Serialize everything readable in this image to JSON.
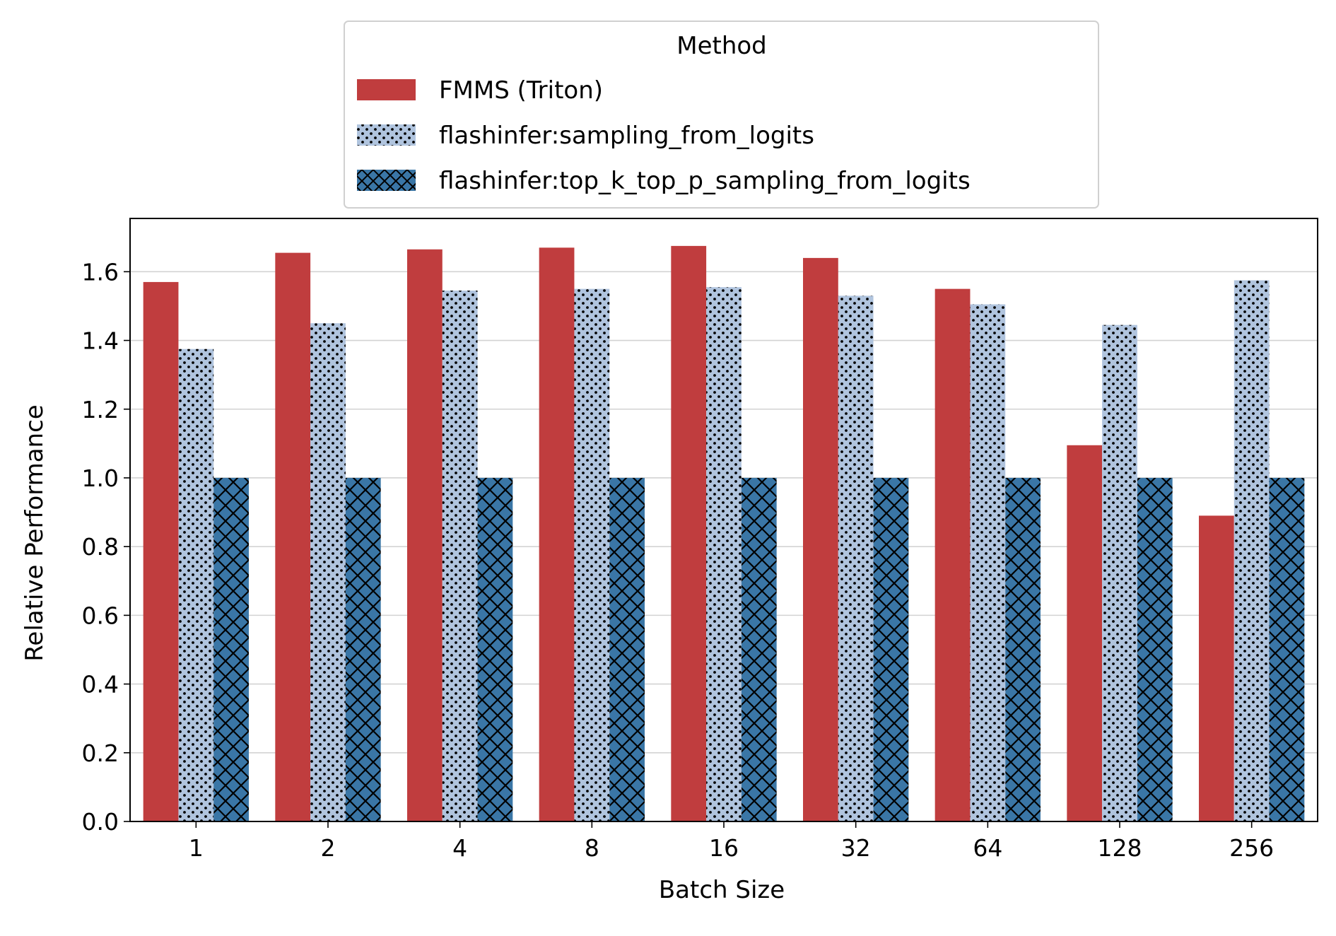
{
  "chart_data": {
    "type": "bar",
    "xlabel": "Batch Size",
    "ylabel": "Relative Performance",
    "ylim": [
      0,
      1.755
    ],
    "yticks": [
      0.0,
      0.2,
      0.4,
      0.6,
      0.8,
      1.0,
      1.2,
      1.4,
      1.6
    ],
    "ytick_labels": [
      "0.0",
      "0.2",
      "0.4",
      "0.6",
      "0.8",
      "1.0",
      "1.2",
      "1.4",
      "1.6"
    ],
    "grid": "horizontal",
    "legend": {
      "title": "Method",
      "placement": "top-center, outside above plot"
    },
    "categories": [
      "1",
      "2",
      "4",
      "8",
      "16",
      "32",
      "64",
      "128",
      "256"
    ],
    "series": [
      {
        "name": "FMMS (Triton)",
        "color": "#c03d3e",
        "pattern": "solid",
        "values": [
          1.57,
          1.655,
          1.665,
          1.67,
          1.675,
          1.64,
          1.55,
          1.095,
          0.89
        ]
      },
      {
        "name": "flashinfer:sampling_from_logits",
        "color": "#b0c4de",
        "pattern": "dots",
        "values": [
          1.375,
          1.45,
          1.545,
          1.55,
          1.555,
          1.53,
          1.505,
          1.445,
          1.575
        ]
      },
      {
        "name": "flashinfer:top_k_top_p_sampling_from_logits",
        "color": "#3a76a6",
        "pattern": "crosshatch",
        "values": [
          1.0,
          1.0,
          1.0,
          1.0,
          1.0,
          1.0,
          1.0,
          1.0,
          1.0
        ]
      }
    ]
  }
}
